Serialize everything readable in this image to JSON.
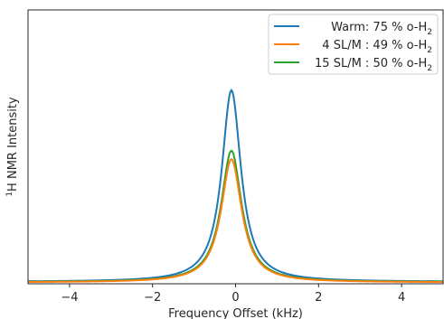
{
  "chart_data": {
    "type": "line",
    "xlabel": "Frequency Offset (kHz)",
    "ylabel": "1H NMR Intensity",
    "ylabel_main": "H NMR Intensity",
    "ylabel_sup": "1",
    "xlim": [
      -5,
      5
    ],
    "ylim": [
      0,
      1.0
    ],
    "x_ticks": [
      -4,
      -2,
      0,
      2,
      4
    ],
    "x_tick_labels": [
      "−4",
      "−2",
      "0",
      "2",
      "4"
    ],
    "y_ticks_shown": false,
    "grid": false,
    "legend_position": "top-right",
    "series": [
      {
        "name": "Warm: 75 % o-H2",
        "label_main": "Warm: 75 % o-H",
        "label_sub": "2",
        "color": "#1f77b4",
        "center": -0.1,
        "amplitude": 0.7,
        "hwhm": 0.28,
        "baseline": 0.007
      },
      {
        "name": "4 SL/M : 49 % o-H2",
        "label_main": "4 SL/M : 49 % o-H",
        "label_sub": "2",
        "color": "#ff7f0e",
        "center": -0.1,
        "amplitude": 0.45,
        "hwhm": 0.3,
        "baseline": 0.005
      },
      {
        "name": "15 SL/M : 50 % o-H2",
        "label_main": "15 SL/M : 50 % o-H",
        "label_sub": "2",
        "color": "#2ca02c",
        "center": -0.1,
        "amplitude": 0.48,
        "hwhm": 0.3,
        "baseline": 0.006
      }
    ]
  }
}
